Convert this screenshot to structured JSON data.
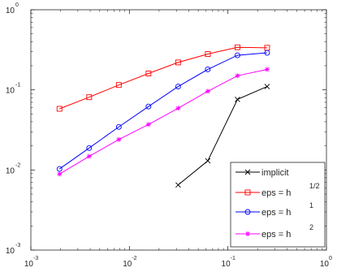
{
  "chart_data": {
    "type": "line",
    "title": "",
    "xlabel": "",
    "ylabel": "",
    "xscale": "log",
    "yscale": "log",
    "xlim": [
      0.001,
      1
    ],
    "ylim": [
      0.001,
      1
    ],
    "grid": false,
    "legend_position": "bottom-right",
    "x_ticks": [
      {
        "base": "10",
        "exp": "-3"
      },
      {
        "base": "10",
        "exp": "-2"
      },
      {
        "base": "10",
        "exp": "-1"
      },
      {
        "base": "10",
        "exp": "0"
      }
    ],
    "y_ticks": [
      {
        "base": "10",
        "exp": "-3"
      },
      {
        "base": "10",
        "exp": "-2"
      },
      {
        "base": "10",
        "exp": "-1"
      },
      {
        "base": "10",
        "exp": "0"
      }
    ],
    "series": [
      {
        "name": "implicit",
        "label_main": "implicit",
        "label_sup": "",
        "color": "#000000",
        "marker": "x",
        "x": [
          0.03125,
          0.0625,
          0.125,
          0.25
        ],
        "y": [
          0.0065,
          0.013,
          0.076,
          0.11
        ]
      },
      {
        "name": "eps = h 1/2",
        "label_main": "eps = h",
        "label_sup": "1/2",
        "color": "#ff0000",
        "marker": "square",
        "x": [
          0.001953125,
          0.00390625,
          0.0078125,
          0.015625,
          0.03125,
          0.0625,
          0.125,
          0.25
        ],
        "y": [
          0.058,
          0.081,
          0.115,
          0.16,
          0.22,
          0.28,
          0.34,
          0.335
        ]
      },
      {
        "name": "eps = h 1",
        "label_main": "eps = h",
        "label_sup": "1",
        "color": "#0000ff",
        "marker": "circle",
        "x": [
          0.001953125,
          0.00390625,
          0.0078125,
          0.015625,
          0.03125,
          0.0625,
          0.125,
          0.25
        ],
        "y": [
          0.0103,
          0.0188,
          0.0345,
          0.062,
          0.11,
          0.18,
          0.27,
          0.29
        ]
      },
      {
        "name": "eps = h 2",
        "label_main": "eps = h",
        "label_sup": "2",
        "color": "#ff00ff",
        "marker": "asterisk",
        "x": [
          0.001953125,
          0.00390625,
          0.0078125,
          0.015625,
          0.03125,
          0.0625,
          0.125,
          0.25
        ],
        "y": [
          0.0089,
          0.0148,
          0.024,
          0.037,
          0.059,
          0.096,
          0.15,
          0.18
        ]
      }
    ]
  }
}
